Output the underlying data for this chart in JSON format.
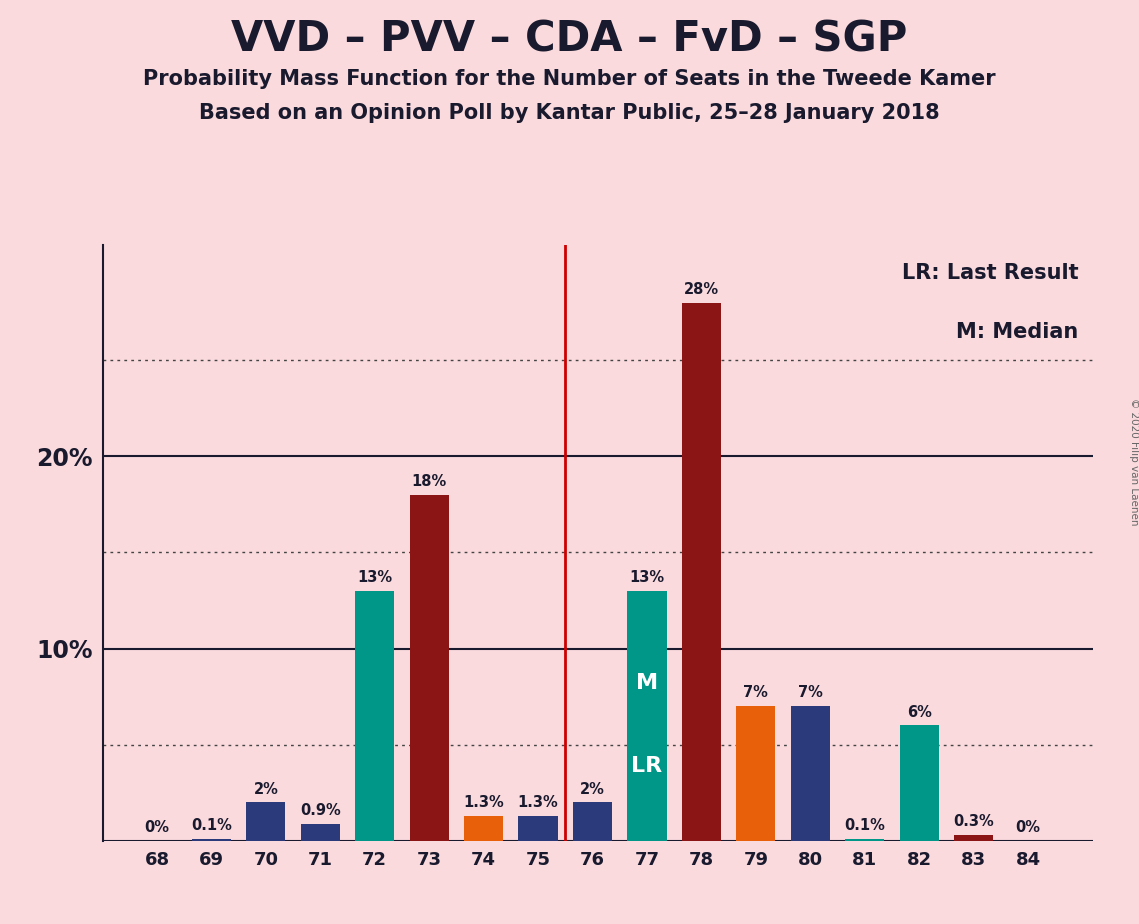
{
  "title": "VVD – PVV – CDA – FvD – SGP",
  "subtitle1": "Probability Mass Function for the Number of Seats in the Tweede Kamer",
  "subtitle2": "Based on an Opinion Poll by Kantar Public, 25–28 January 2018",
  "copyright": "© 2020 Filip van Laenen",
  "legend_lr": "LR: Last Result",
  "legend_m": "M: Median",
  "seats": [
    68,
    69,
    70,
    71,
    72,
    73,
    74,
    75,
    76,
    77,
    78,
    79,
    80,
    81,
    82,
    83,
    84
  ],
  "values": [
    0.0,
    0.1,
    2.0,
    0.9,
    13.0,
    18.0,
    1.3,
    1.3,
    2.0,
    13.0,
    28.0,
    7.0,
    7.0,
    0.1,
    6.0,
    0.3,
    0.0
  ],
  "labels": [
    "0%",
    "0.1%",
    "2%",
    "0.9%",
    "13%",
    "18%",
    "1.3%",
    "1.3%",
    "2%",
    "13%",
    "28%",
    "7%",
    "7%",
    "0.1%",
    "6%",
    "0.3%",
    "0%"
  ],
  "colors": [
    "#009688",
    "#2B3A7A",
    "#2B3A7A",
    "#2B3A7A",
    "#009688",
    "#8B1515",
    "#E8600A",
    "#2B3A7A",
    "#2B3A7A",
    "#009688",
    "#8B1515",
    "#E8600A",
    "#2B3A7A",
    "#009688",
    "#009688",
    "#8B1515",
    "#8B1515"
  ],
  "median_seat": 77,
  "lr_seat": 77,
  "vline_x": 75.5,
  "bg_color": "#FADADD",
  "title_color": "#1A1A2E",
  "solid_yticks": [
    10,
    20
  ],
  "dotted_yticks": [
    5,
    15,
    25
  ],
  "ylim": [
    0,
    31
  ],
  "bar_width": 0.72,
  "xlim_left": 67.0,
  "xlim_right": 85.2
}
